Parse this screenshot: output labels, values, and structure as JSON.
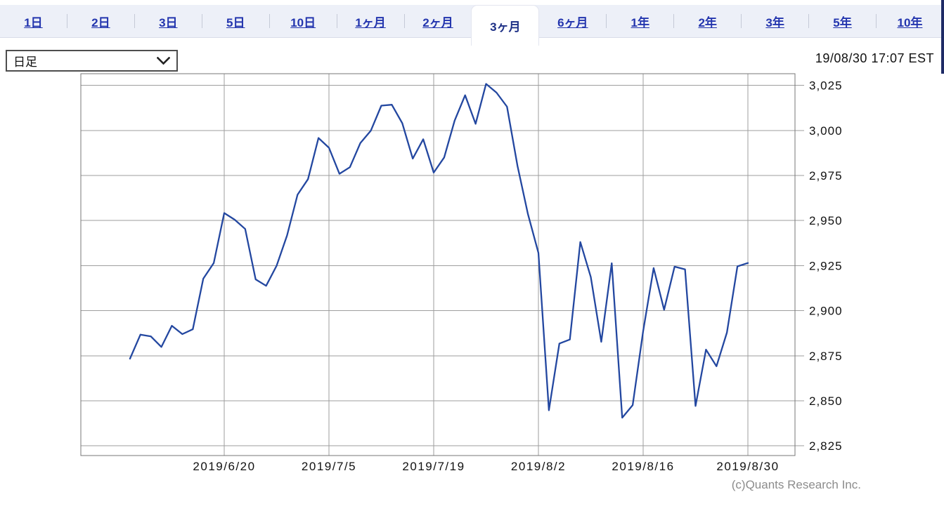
{
  "tabbar": {
    "tabs": [
      {
        "label": "1日",
        "selected": false
      },
      {
        "label": "2日",
        "selected": false
      },
      {
        "label": "3日",
        "selected": false
      },
      {
        "label": "5日",
        "selected": false
      },
      {
        "label": "10日",
        "selected": false
      },
      {
        "label": "1ヶ月",
        "selected": false
      },
      {
        "label": "2ヶ月",
        "selected": false
      },
      {
        "label": "3ヶ月",
        "selected": true
      },
      {
        "label": "6ヶ月",
        "selected": false
      },
      {
        "label": "1年",
        "selected": false
      },
      {
        "label": "2年",
        "selected": false
      },
      {
        "label": "3年",
        "selected": false
      },
      {
        "label": "5年",
        "selected": false
      },
      {
        "label": "10年",
        "selected": false
      }
    ]
  },
  "controls": {
    "timeframe_value": "日足",
    "timestamp": "19/08/30 17:07 EST"
  },
  "footer": {
    "copyright": "(c)Quants Research Inc."
  },
  "ui_colors": {
    "tab_link": "#2335ae",
    "tab_selected_text": "#1c2f85",
    "tabbar_bg": "#edf0f8",
    "right_edge_strip": "#1e2b66"
  },
  "chart_data": {
    "type": "line",
    "title": "",
    "xlabel": "",
    "ylabel": "",
    "grid": true,
    "legend": "none",
    "line_color": "#2347a0",
    "grid_color": "#9e9e9e",
    "border_color": "#777777",
    "ylim": [
      2819.6,
      3031.5
    ],
    "y_ticks": [
      2825,
      2850,
      2875,
      2900,
      2925,
      2950,
      2975,
      3000,
      3025
    ],
    "x_tick_labels": [
      "2019/6/20",
      "2019/7/5",
      "2019/7/19",
      "2019/8/2",
      "2019/8/16",
      "2019/8/30"
    ],
    "x_tick_indices": [
      9,
      19,
      29,
      39,
      49,
      59
    ],
    "x": [
      "2019/6/7",
      "2019/6/10",
      "2019/6/11",
      "2019/6/12",
      "2019/6/13",
      "2019/6/14",
      "2019/6/17",
      "2019/6/18",
      "2019/6/19",
      "2019/6/20",
      "2019/6/21",
      "2019/6/24",
      "2019/6/25",
      "2019/6/26",
      "2019/6/27",
      "2019/6/28",
      "2019/7/1",
      "2019/7/2",
      "2019/7/3",
      "2019/7/5",
      "2019/7/8",
      "2019/7/9",
      "2019/7/10",
      "2019/7/11",
      "2019/7/12",
      "2019/7/15",
      "2019/7/16",
      "2019/7/17",
      "2019/7/18",
      "2019/7/19",
      "2019/7/22",
      "2019/7/23",
      "2019/7/24",
      "2019/7/25",
      "2019/7/26",
      "2019/7/29",
      "2019/7/30",
      "2019/7/31",
      "2019/8/1",
      "2019/8/2",
      "2019/8/5",
      "2019/8/6",
      "2019/8/7",
      "2019/8/8",
      "2019/8/9",
      "2019/8/12",
      "2019/8/13",
      "2019/8/14",
      "2019/8/15",
      "2019/8/16",
      "2019/8/19",
      "2019/8/20",
      "2019/8/21",
      "2019/8/22",
      "2019/8/23",
      "2019/8/26",
      "2019/8/27",
      "2019/8/28",
      "2019/8/29",
      "2019/8/30"
    ],
    "series": [
      {
        "name": "close",
        "values": [
          2873.34,
          2886.73,
          2885.72,
          2879.84,
          2891.64,
          2886.98,
          2889.67,
          2917.75,
          2926.46,
          2954.18,
          2950.46,
          2945.35,
          2917.38,
          2913.78,
          2924.92,
          2941.76,
          2964.33,
          2973.01,
          2995.82,
          2990.41,
          2975.95,
          2979.63,
          2993.07,
          2999.91,
          3013.77,
          3014.3,
          3004.04,
          2984.42,
          2995.11,
          2976.61,
          2985.03,
          3005.47,
          3019.56,
          3003.67,
          3025.86,
          3020.97,
          3013.18,
          2980.38,
          2953.56,
          2932.05,
          2844.74,
          2881.77,
          2883.98,
          2938.09,
          2918.65,
          2882.7,
          2926.32,
          2840.6,
          2847.6,
          2888.68,
          2923.65,
          2900.51,
          2924.43,
          2922.95,
          2847.11,
          2878.38,
          2869.16,
          2887.94,
          2924.58,
          2926.46
        ]
      }
    ]
  }
}
